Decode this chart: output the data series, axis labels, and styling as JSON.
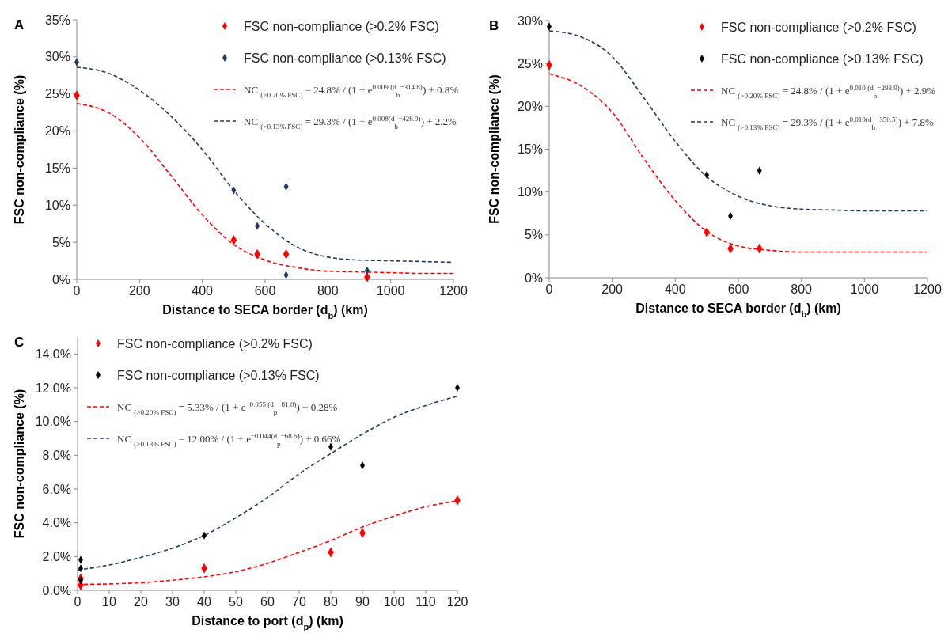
{
  "chart_data": [
    {
      "type": "scatter",
      "title": "A",
      "xlabel": "Distance to SECA border (d$_{b}$) (km)",
      "ylabel": "FSC non-compliance (%)",
      "xlim": [
        0,
        1200
      ],
      "xticks": [
        0,
        200,
        400,
        600,
        800,
        1000,
        1200
      ],
      "ylim": [
        0,
        35
      ],
      "yticks": [
        {
          "value": 0,
          "label": "0%"
        },
        {
          "value": 5,
          "label": "5%"
        },
        {
          "value": 10,
          "label": "10%"
        },
        {
          "value": 15,
          "label": "15%"
        },
        {
          "value": 20,
          "label": "20%"
        },
        {
          "value": 25,
          "label": "25%"
        },
        {
          "value": 30,
          "label": "30%"
        },
        {
          "value": 35,
          "label": "35%"
        }
      ],
      "marker": "diamond",
      "line_style": "dashed",
      "legend": "top right",
      "series": [
        {
          "name": "FSC non-compliance (>0.2% FSC)",
          "color": "#ff0000",
          "x": [
            0,
            500,
            575,
            667,
            925
          ],
          "values": [
            24.8,
            5.3,
            3.4,
            3.4,
            0.3
          ]
        },
        {
          "name": "FSC non-compliance (>0.13% FSC)",
          "color": "#1f3864",
          "x": [
            0,
            500,
            575,
            667,
            667,
            925
          ],
          "values": [
            29.3,
            12.0,
            7.2,
            12.5,
            0.6,
            1.2
          ]
        },
        {
          "name": "NC $_{(>0.20% FSC)}$ = 24.8% / (1 + e$^{0.009 (d}$$_{b}$$^{−314.8)}$) + 0.8%",
          "type": "line",
          "marker": "none",
          "color": "#ff0000",
          "x": [
            0,
            100,
            200,
            300,
            400,
            500,
            600,
            700,
            800,
            900,
            1000,
            1100,
            1200
          ],
          "values": [
            23.7,
            22.5,
            19.1,
            14.0,
            8.7,
            4.7,
            2.6,
            1.6,
            1.1,
            1.0,
            0.9,
            0.8,
            0.8
          ]
        },
        {
          "name": "NC $_{(>0.13% FSC)}$ = 29.3% / (1 + e$^{0.008(d}$$_{b}$$^{−428.9)}$) + 2.2%",
          "type": "line",
          "marker": "none",
          "color": "#1f3864",
          "x": [
            0,
            100,
            200,
            300,
            400,
            500,
            600,
            700,
            800,
            900,
            1000,
            1100,
            1200
          ],
          "values": [
            28.6,
            27.8,
            25.5,
            22.0,
            17.5,
            12.0,
            7.5,
            4.4,
            3.0,
            2.6,
            2.5,
            2.4,
            2.3
          ]
        }
      ]
    },
    {
      "type": "scatter",
      "title": "B",
      "xlabel": "Distance to SECA border (d$_{b}$) (km)",
      "ylabel": "FSC non-compliance (%)",
      "xlim": [
        0,
        1200
      ],
      "xticks": [
        0,
        200,
        400,
        600,
        800,
        1000,
        1200
      ],
      "ylim": [
        0,
        30
      ],
      "yticks": [
        {
          "value": 0,
          "label": "0%"
        },
        {
          "value": 5,
          "label": "5%"
        },
        {
          "value": 10,
          "label": "10%"
        },
        {
          "value": 15,
          "label": "15%"
        },
        {
          "value": 20,
          "label": "20%"
        },
        {
          "value": 25,
          "label": "25%"
        },
        {
          "value": 30,
          "label": "30%"
        }
      ],
      "marker": "diamond",
      "line_style": "dashed",
      "legend": "top right",
      "series": [
        {
          "name": "FSC non-compliance (>0.2% FSC)",
          "color": "#ff0000",
          "x": [
            0,
            500,
            575,
            667
          ],
          "values": [
            24.8,
            5.3,
            3.4,
            3.4
          ]
        },
        {
          "name": "FSC non-compliance (>0.13% FSC)",
          "color": "#000000",
          "x": [
            0,
            500,
            575,
            667
          ],
          "values": [
            29.3,
            12.0,
            7.2,
            12.5
          ]
        },
        {
          "name": "NC $_{(>0.20% FSC)}$ = 24.8% / (1 + e$^{0.010 (d}$$_{b}$$^{−293.9)}$) + 2.9%",
          "type": "line",
          "marker": "none",
          "color": "#ff0000",
          "x": [
            0,
            100,
            200,
            300,
            400,
            500,
            600,
            700,
            800,
            900,
            1000,
            1100,
            1200
          ],
          "values": [
            23.8,
            22.4,
            19.3,
            13.9,
            9.0,
            5.4,
            3.7,
            3.2,
            3.0,
            3.0,
            3.0,
            3.0,
            3.0
          ]
        },
        {
          "name": "NC $_{(>0.13% FSC)}$ = 29.3% / (1 + e$^{0.010(d}$$_{b}$$^{−350.5)}$) + 7.8%",
          "type": "line",
          "marker": "none",
          "color": "#1f3864",
          "x": [
            0,
            100,
            200,
            300,
            400,
            500,
            600,
            700,
            800,
            900,
            1000,
            1100,
            1200
          ],
          "values": [
            28.8,
            28.1,
            25.8,
            21.0,
            15.9,
            11.8,
            9.5,
            8.4,
            8.0,
            7.9,
            7.8,
            7.8,
            7.8
          ]
        }
      ]
    },
    {
      "type": "scatter",
      "title": "C",
      "xlabel": "Distance to port (d$_{p}$)  (km)",
      "ylabel": "FSC non-compliance (%)",
      "xlim": [
        0,
        120
      ],
      "xticks": [
        0,
        10,
        20,
        30,
        40,
        50,
        60,
        70,
        80,
        90,
        100,
        110,
        120
      ],
      "ylim": [
        0,
        15
      ],
      "yticks": [
        {
          "value": 0,
          "label": "0.0%"
        },
        {
          "value": 2,
          "label": "2.0%"
        },
        {
          "value": 4,
          "label": "4.0%"
        },
        {
          "value": 6,
          "label": "6.0%"
        },
        {
          "value": 8,
          "label": "8.0%"
        },
        {
          "value": 10,
          "label": "10.0%"
        },
        {
          "value": 12,
          "label": "12.0%"
        },
        {
          "value": 14,
          "label": "14.0%"
        }
      ],
      "marker": "diamond",
      "line_style": "dashed",
      "legend": "top left",
      "series": [
        {
          "name": "FSC non-compliance (>0.2% FSC)",
          "color": "#ff0000",
          "x": [
            1,
            1,
            40,
            80,
            90,
            120
          ],
          "values": [
            0.3,
            0.7,
            1.3,
            2.25,
            3.4,
            5.33
          ]
        },
        {
          "name": "FSC non-compliance (>0.13% FSC)",
          "color": "#000000",
          "x": [
            1,
            1,
            1,
            40,
            80,
            90,
            120
          ],
          "values": [
            1.8,
            1.3,
            0.6,
            3.25,
            8.5,
            7.4,
            12.0
          ]
        },
        {
          "name": "NC $_{(>0.20% FSC)}$ = 5.33% / (1 + e$^{−0.055 (d}$$_{p}$$^{−81.8)}$) + 0.28%",
          "type": "line",
          "marker": "none",
          "color": "#ff0000",
          "x": [
            0,
            10,
            20,
            30,
            40,
            50,
            60,
            70,
            80,
            90,
            100,
            110,
            120
          ],
          "values": [
            0.35,
            0.38,
            0.45,
            0.6,
            0.8,
            1.1,
            1.6,
            2.25,
            2.95,
            3.75,
            4.4,
            4.95,
            5.3
          ]
        },
        {
          "name": "NC $_{(>0.13% FSC)}$ = 12.00% / (1 + e$^{−0.044(d}$$_{p}$$^{−68.6)}$) + 0.66%",
          "type": "line",
          "marker": "none",
          "color": "#1f3864",
          "x": [
            0,
            10,
            20,
            30,
            40,
            50,
            60,
            70,
            80,
            90,
            100,
            110,
            120
          ],
          "values": [
            1.2,
            1.5,
            1.95,
            2.5,
            3.25,
            4.3,
            5.5,
            6.9,
            8.1,
            9.25,
            10.25,
            10.95,
            11.5
          ]
        }
      ]
    }
  ]
}
